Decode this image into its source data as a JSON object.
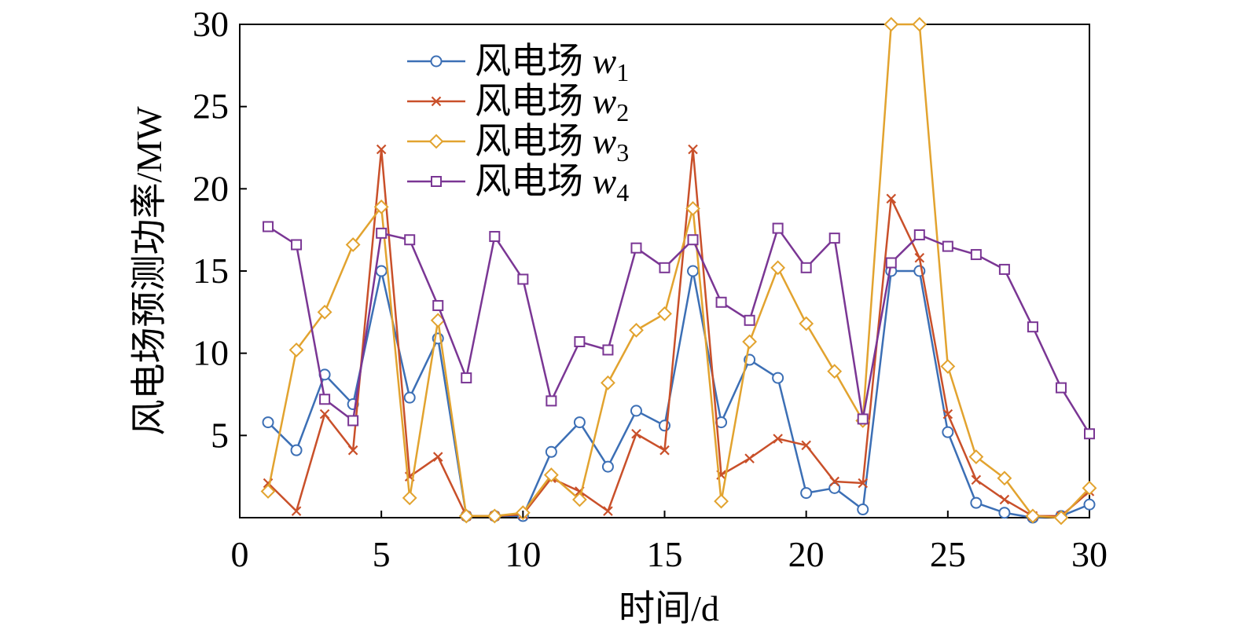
{
  "chart_data": {
    "type": "line",
    "xlabel": "时间/d",
    "ylabel": "风电场预测功率/MW",
    "xlim": [
      0,
      30
    ],
    "ylim": [
      0,
      30
    ],
    "xticks": [
      "0",
      "5",
      "10",
      "15",
      "20",
      "25",
      "30"
    ],
    "yticks": [
      "5",
      "10",
      "15",
      "20",
      "25",
      "30"
    ],
    "grid": false,
    "legend_position": "top-left",
    "x": [
      1,
      2,
      3,
      4,
      5,
      6,
      7,
      8,
      9,
      10,
      11,
      12,
      13,
      14,
      15,
      16,
      17,
      18,
      19,
      20,
      21,
      22,
      23,
      24,
      25,
      26,
      27,
      28,
      29,
      30
    ],
    "series": [
      {
        "name": "风电场 w1",
        "prefix": "风电场",
        "var": "w",
        "sub": "1",
        "color": "#3C6FB5",
        "marker": "circle",
        "values": [
          5.8,
          4.1,
          8.7,
          6.9,
          15.0,
          7.3,
          10.9,
          0.1,
          0.1,
          0.1,
          4.0,
          5.8,
          3.1,
          6.5,
          5.6,
          15.0,
          5.8,
          9.6,
          8.5,
          1.5,
          1.8,
          0.5,
          15.0,
          15.0,
          5.2,
          0.9,
          0.3,
          0.0,
          0.1,
          0.8
        ]
      },
      {
        "name": "风电场 w2",
        "prefix": "风电场",
        "var": "w",
        "sub": "2",
        "color": "#C9502A",
        "marker": "x",
        "values": [
          2.1,
          0.4,
          6.3,
          4.1,
          22.4,
          2.5,
          3.7,
          0.1,
          0.1,
          0.2,
          2.4,
          1.6,
          0.4,
          5.1,
          4.1,
          22.4,
          2.6,
          3.6,
          4.8,
          4.4,
          2.2,
          2.1,
          19.4,
          15.8,
          6.3,
          2.3,
          1.1,
          0.1,
          0.1,
          1.6
        ]
      },
      {
        "name": "风电场 w3",
        "prefix": "风电场",
        "var": "w",
        "sub": "3",
        "color": "#E2A32F",
        "marker": "diamond",
        "values": [
          1.6,
          10.2,
          12.5,
          16.6,
          18.9,
          1.2,
          12.0,
          0.1,
          0.1,
          0.3,
          2.6,
          1.1,
          8.2,
          11.4,
          12.4,
          18.8,
          1.0,
          10.7,
          15.2,
          11.8,
          8.9,
          5.9,
          30.0,
          30.0,
          9.2,
          3.7,
          2.4,
          0.1,
          0.0,
          1.8
        ]
      },
      {
        "name": "风电场 w4",
        "prefix": "风电场",
        "var": "w",
        "sub": "4",
        "color": "#7A3694",
        "marker": "square",
        "values": [
          17.7,
          16.6,
          7.2,
          5.9,
          17.3,
          16.9,
          12.9,
          8.5,
          17.1,
          14.5,
          7.1,
          10.7,
          10.2,
          16.4,
          15.2,
          16.9,
          13.1,
          12.0,
          17.6,
          15.2,
          17.0,
          6.0,
          15.5,
          17.2,
          16.5,
          16.0,
          15.1,
          11.6,
          7.9,
          5.1
        ]
      }
    ]
  }
}
